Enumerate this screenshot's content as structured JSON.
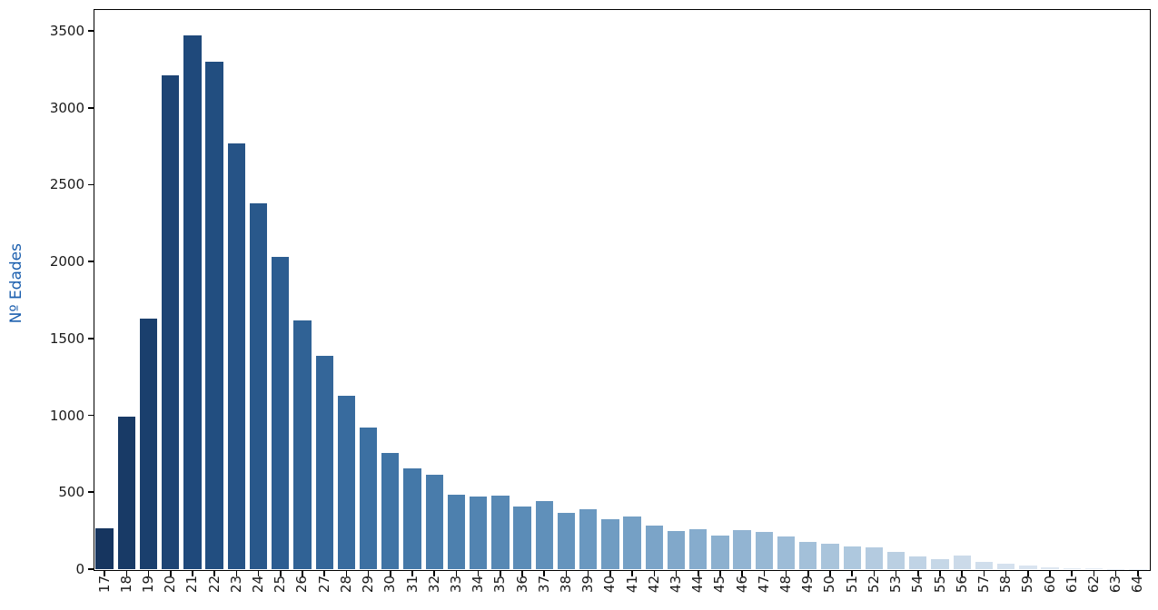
{
  "figure": {
    "background_color": "#ffffff",
    "axis_color": "#000000",
    "tick_label_color": "#1a1a1a",
    "ylabel_color": "#1c5fae"
  },
  "chart_data": {
    "type": "bar",
    "title": "",
    "xlabel": "",
    "ylabel": "Nº Edades",
    "grid": false,
    "legend": "none",
    "x_tick_rotation": 90,
    "ylim": [
      0,
      3642
    ],
    "yticks": [
      0,
      500,
      1000,
      1500,
      2000,
      2500,
      3000,
      3500
    ],
    "categories": [
      "17",
      "18",
      "19",
      "20",
      "21",
      "22",
      "23",
      "24",
      "25",
      "26",
      "27",
      "28",
      "29",
      "30",
      "31",
      "32",
      "33",
      "34",
      "35",
      "36",
      "37",
      "38",
      "39",
      "40",
      "41",
      "42",
      "43",
      "44",
      "45",
      "46",
      "47",
      "48",
      "49",
      "50",
      "51",
      "52",
      "53",
      "54",
      "55",
      "56",
      "57",
      "58",
      "59",
      "60",
      "61",
      "62",
      "63",
      "64"
    ],
    "values": [
      265,
      990,
      1630,
      3210,
      3470,
      3300,
      2770,
      2380,
      2030,
      1620,
      1390,
      1130,
      920,
      755,
      655,
      615,
      485,
      470,
      480,
      410,
      445,
      365,
      390,
      325,
      345,
      285,
      245,
      260,
      220,
      255,
      240,
      210,
      175,
      165,
      145,
      140,
      110,
      85,
      65,
      90,
      50,
      35,
      25,
      10,
      6,
      4,
      2,
      2
    ],
    "bar_colors": [
      "#16355f",
      "#183a66",
      "#1a3f6d",
      "#1d4474",
      "#1f497b",
      "#224e80",
      "#265386",
      "#29588b",
      "#2c5d91",
      "#306295",
      "#346699",
      "#386b9e",
      "#3c70a2",
      "#4074a5",
      "#4478a8",
      "#497cab",
      "#4d80ae",
      "#5284b1",
      "#5788b4",
      "#5b8cb7",
      "#6090ba",
      "#6594bd",
      "#6a98c0",
      "#709cc2",
      "#75a0c5",
      "#7ba4c8",
      "#81a8ca",
      "#86accd",
      "#8cb0cf",
      "#92b4d2",
      "#97b8d4",
      "#9dbcd7",
      "#a3c0d9",
      "#a9c4db",
      "#aec8de",
      "#b4cbe0",
      "#bacfe2",
      "#c0d3e5",
      "#c5d7e7",
      "#cbdae9",
      "#d0deec",
      "#d5e1ee",
      "#d9e4f0",
      "#dee7f1",
      "#e2eaf3",
      "#e6edf5",
      "#eaf0f7",
      "#eef3f9"
    ]
  }
}
